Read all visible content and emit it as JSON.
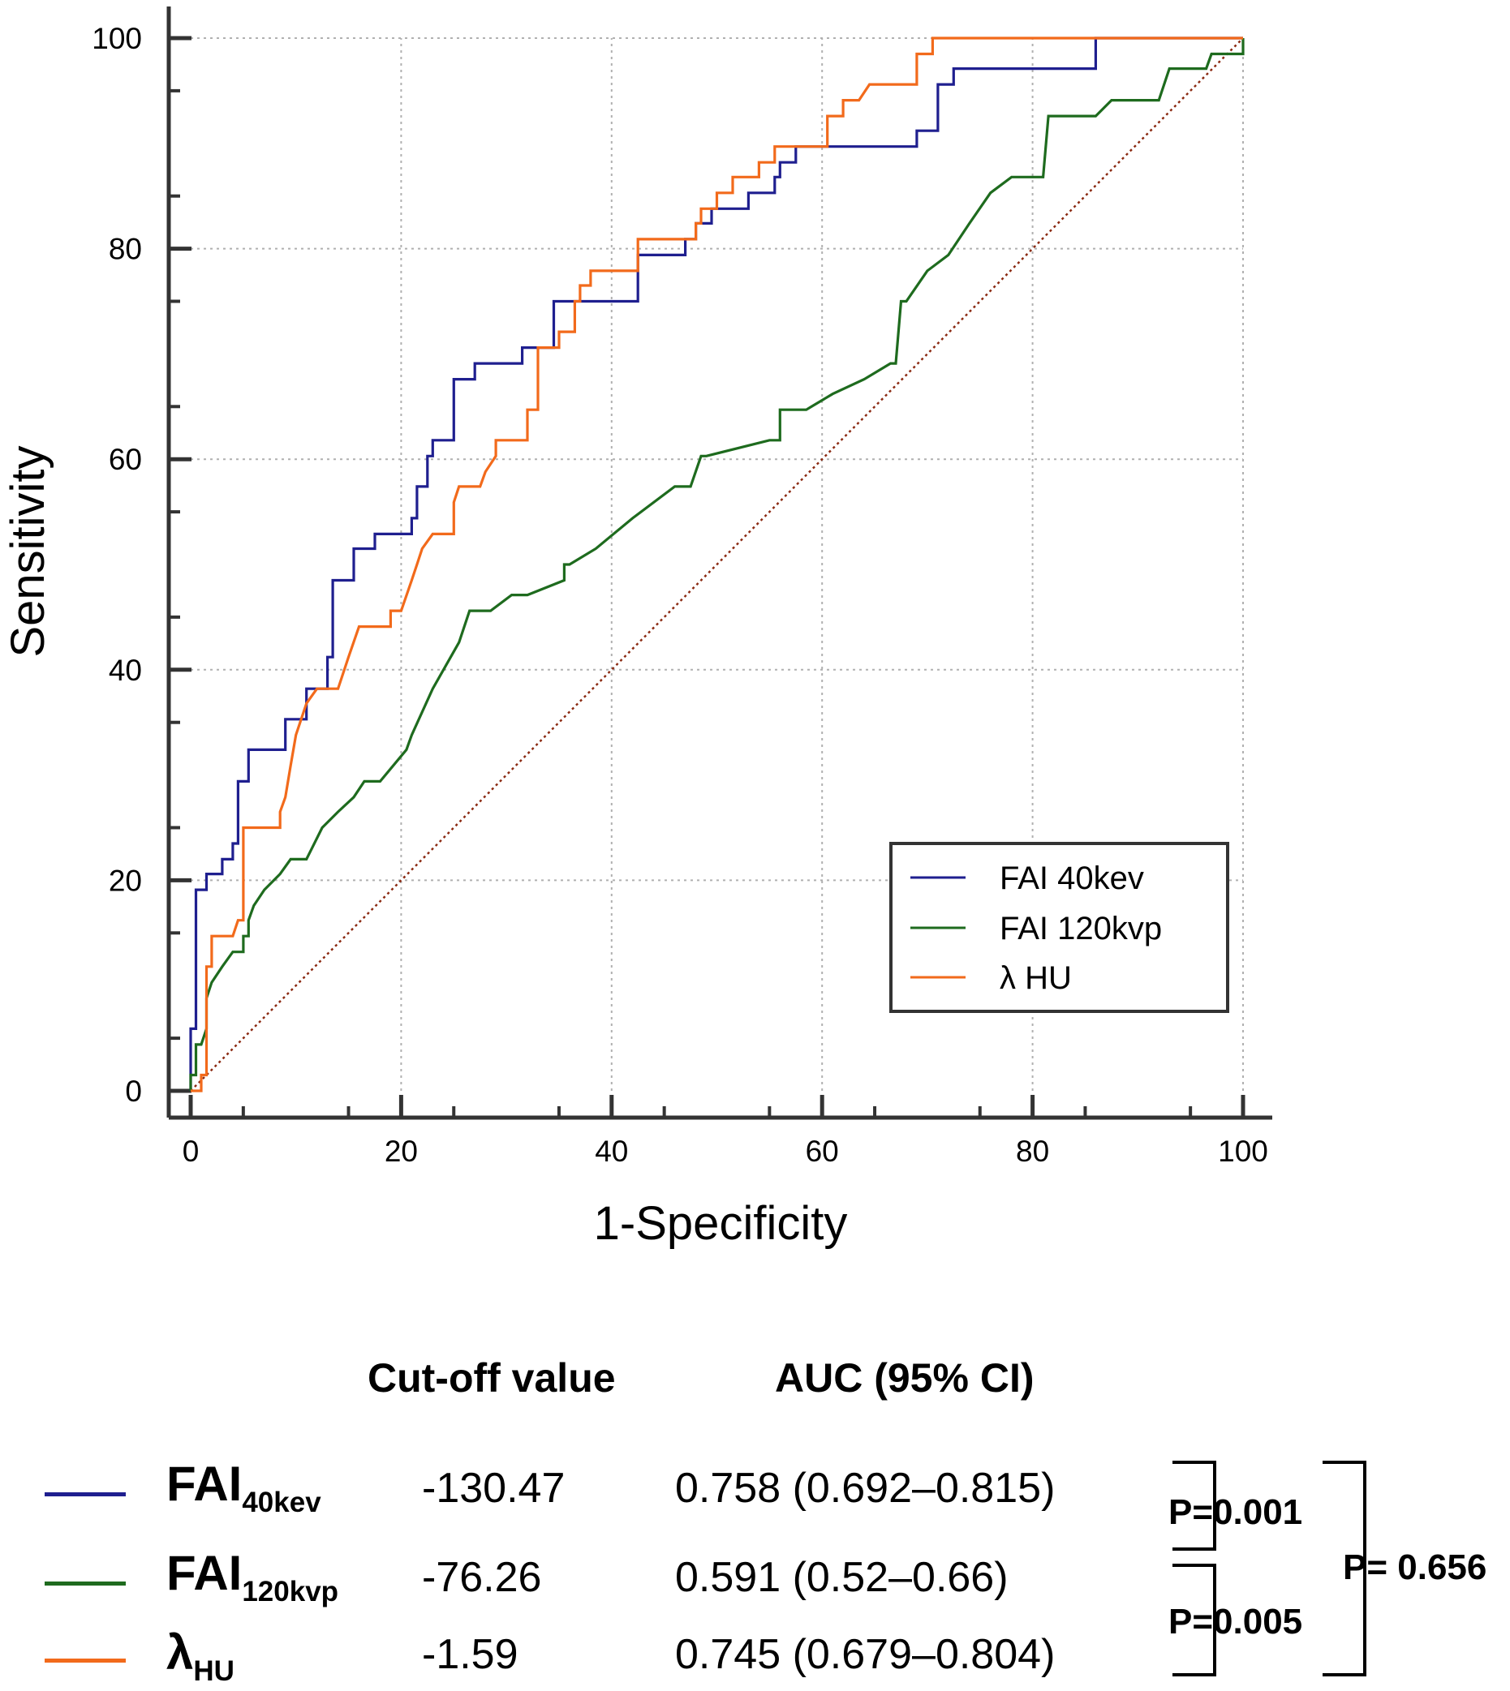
{
  "chart_data": {
    "type": "line",
    "title": "",
    "xlabel": "1-Specificity",
    "ylabel": "Sensitivity",
    "xlim": [
      0,
      100
    ],
    "ylim": [
      0,
      100
    ],
    "xticks": [
      0,
      20,
      40,
      60,
      80,
      100
    ],
    "yticks": [
      0,
      20,
      40,
      60,
      80,
      100
    ],
    "grid": true,
    "legend_position": "bottom-right",
    "reference_line": {
      "name": "diagonal",
      "x": [
        0,
        100
      ],
      "y": [
        0,
        100
      ],
      "color": "#8b2a12"
    },
    "series": [
      {
        "name": "FAI 40kev",
        "color": "#1f1f8f",
        "points": [
          [
            0,
            0
          ],
          [
            0,
            5.9
          ],
          [
            0.5,
            5.9
          ],
          [
            0.5,
            19.1
          ],
          [
            1.5,
            19.1
          ],
          [
            1.5,
            20.6
          ],
          [
            3,
            20.6
          ],
          [
            3,
            22
          ],
          [
            4,
            22
          ],
          [
            4,
            23.5
          ],
          [
            4.5,
            23.5
          ],
          [
            4.5,
            29.4
          ],
          [
            5.5,
            29.4
          ],
          [
            5.5,
            32.4
          ],
          [
            9,
            32.4
          ],
          [
            9,
            35.3
          ],
          [
            11,
            35.3
          ],
          [
            11,
            38.2
          ],
          [
            13,
            38.2
          ],
          [
            13,
            41.2
          ],
          [
            13.5,
            41.2
          ],
          [
            13.5,
            48.5
          ],
          [
            15.5,
            48.5
          ],
          [
            15.5,
            51.5
          ],
          [
            17.5,
            51.5
          ],
          [
            17.5,
            52.9
          ],
          [
            21,
            52.9
          ],
          [
            21,
            54.4
          ],
          [
            21.5,
            54.4
          ],
          [
            21.5,
            57.4
          ],
          [
            22.5,
            57.4
          ],
          [
            22.5,
            60.3
          ],
          [
            23,
            60.3
          ],
          [
            23,
            61.8
          ],
          [
            25,
            61.8
          ],
          [
            25,
            67.6
          ],
          [
            27,
            67.6
          ],
          [
            27,
            69.1
          ],
          [
            31.5,
            69.1
          ],
          [
            31.5,
            70.6
          ],
          [
            34.5,
            70.6
          ],
          [
            34.5,
            75
          ],
          [
            42.5,
            75
          ],
          [
            42.5,
            79.4
          ],
          [
            47,
            79.4
          ],
          [
            47,
            80.9
          ],
          [
            48,
            80.9
          ],
          [
            48,
            82.4
          ],
          [
            49.5,
            82.4
          ],
          [
            49.5,
            83.8
          ],
          [
            53,
            83.8
          ],
          [
            53,
            85.3
          ],
          [
            55.5,
            85.3
          ],
          [
            55.5,
            86.8
          ],
          [
            56,
            86.8
          ],
          [
            56,
            88.2
          ],
          [
            57.5,
            88.2
          ],
          [
            57.5,
            89.7
          ],
          [
            69,
            89.7
          ],
          [
            69,
            91.2
          ],
          [
            71,
            91.2
          ],
          [
            71,
            95.6
          ],
          [
            72.5,
            95.6
          ],
          [
            72.5,
            97.1
          ],
          [
            86,
            97.1
          ],
          [
            86,
            100
          ],
          [
            100,
            100
          ]
        ]
      },
      {
        "name": "FAI 120kvp",
        "color": "#1e6b1e",
        "points": [
          [
            0,
            0
          ],
          [
            0,
            1.5
          ],
          [
            0.5,
            1.5
          ],
          [
            0.5,
            4.4
          ],
          [
            1,
            4.4
          ],
          [
            1.5,
            5.9
          ],
          [
            1.5,
            8.8
          ],
          [
            2,
            10.3
          ],
          [
            3,
            11.8
          ],
          [
            4,
            13.2
          ],
          [
            5,
            13.2
          ],
          [
            5,
            14.7
          ],
          [
            5.5,
            14.7
          ],
          [
            5.5,
            16.2
          ],
          [
            6,
            17.6
          ],
          [
            7,
            19.1
          ],
          [
            8.5,
            20.6
          ],
          [
            9.5,
            22
          ],
          [
            10.5,
            22
          ],
          [
            11,
            22
          ],
          [
            12.5,
            25
          ],
          [
            14,
            26.5
          ],
          [
            15.5,
            27.9
          ],
          [
            16.5,
            29.4
          ],
          [
            18,
            29.4
          ],
          [
            20.5,
            32.4
          ],
          [
            21,
            33.8
          ],
          [
            23,
            38.2
          ],
          [
            25.5,
            42.6
          ],
          [
            26.5,
            45.6
          ],
          [
            28.5,
            45.6
          ],
          [
            30.5,
            47.1
          ],
          [
            31,
            47.1
          ],
          [
            32,
            47.1
          ],
          [
            35.5,
            48.5
          ],
          [
            35.5,
            50
          ],
          [
            36,
            50
          ],
          [
            38.5,
            51.5
          ],
          [
            42,
            54.4
          ],
          [
            46,
            57.4
          ],
          [
            47.5,
            57.4
          ],
          [
            48.5,
            60.3
          ],
          [
            49,
            60.3
          ],
          [
            55,
            61.8
          ],
          [
            56,
            61.8
          ],
          [
            56,
            64.7
          ],
          [
            57,
            64.7
          ],
          [
            58.5,
            64.7
          ],
          [
            59,
            65
          ],
          [
            61,
            66.2
          ],
          [
            64,
            67.6
          ],
          [
            66.5,
            69.1
          ],
          [
            67,
            69.1
          ],
          [
            67.5,
            75
          ],
          [
            68,
            75
          ],
          [
            70,
            77.9
          ],
          [
            72,
            79.4
          ],
          [
            74,
            82.4
          ],
          [
            76,
            85.3
          ],
          [
            78,
            86.8
          ],
          [
            81,
            86.8
          ],
          [
            81.5,
            92.6
          ],
          [
            86,
            92.6
          ],
          [
            87.5,
            94.1
          ],
          [
            90,
            94.1
          ],
          [
            92,
            94.1
          ],
          [
            92.5,
            95.6
          ],
          [
            93,
            97.1
          ],
          [
            96.5,
            97.1
          ],
          [
            97,
            98.5
          ],
          [
            99,
            98.5
          ],
          [
            100,
            98.5
          ],
          [
            100,
            100
          ]
        ]
      },
      {
        "name": "λ HU",
        "color": "#f26a1b",
        "points": [
          [
            0,
            0
          ],
          [
            1,
            0
          ],
          [
            1,
            1.5
          ],
          [
            1.5,
            1.5
          ],
          [
            1.5,
            11.8
          ],
          [
            2,
            11.8
          ],
          [
            2,
            14.7
          ],
          [
            4,
            14.7
          ],
          [
            4.5,
            16.2
          ],
          [
            5,
            16.2
          ],
          [
            5,
            25
          ],
          [
            8.5,
            25
          ],
          [
            8.5,
            26.5
          ],
          [
            9,
            27.9
          ],
          [
            9.5,
            30.9
          ],
          [
            10,
            33.8
          ],
          [
            10.5,
            35.3
          ],
          [
            11,
            36.8
          ],
          [
            12,
            38.2
          ],
          [
            13,
            38.2
          ],
          [
            14,
            38.2
          ],
          [
            15,
            41.2
          ],
          [
            16,
            44.1
          ],
          [
            19,
            44.1
          ],
          [
            19,
            45.6
          ],
          [
            20,
            45.6
          ],
          [
            21,
            48.5
          ],
          [
            21.5,
            50
          ],
          [
            22,
            51.5
          ],
          [
            23,
            52.9
          ],
          [
            24,
            52.9
          ],
          [
            25,
            52.9
          ],
          [
            25,
            55.9
          ],
          [
            25.5,
            57.4
          ],
          [
            27.5,
            57.4
          ],
          [
            28,
            58.8
          ],
          [
            29,
            60.3
          ],
          [
            29,
            61.8
          ],
          [
            32,
            61.8
          ],
          [
            32,
            64.7
          ],
          [
            33,
            64.7
          ],
          [
            33,
            70.6
          ],
          [
            35,
            70.6
          ],
          [
            35,
            72.1
          ],
          [
            36.5,
            72.1
          ],
          [
            36.5,
            75
          ],
          [
            37,
            75
          ],
          [
            37,
            76.5
          ],
          [
            38,
            76.5
          ],
          [
            38,
            77.9
          ],
          [
            42.5,
            77.9
          ],
          [
            42.5,
            80.9
          ],
          [
            48,
            80.9
          ],
          [
            48,
            82.4
          ],
          [
            48.5,
            82.4
          ],
          [
            48.5,
            83.8
          ],
          [
            50,
            83.8
          ],
          [
            50,
            85.3
          ],
          [
            51.5,
            85.3
          ],
          [
            51.5,
            86.8
          ],
          [
            54,
            86.8
          ],
          [
            54,
            88.2
          ],
          [
            55.5,
            88.2
          ],
          [
            55.5,
            89.7
          ],
          [
            60.5,
            89.7
          ],
          [
            60.5,
            92.6
          ],
          [
            62,
            92.6
          ],
          [
            62,
            94.1
          ],
          [
            63.5,
            94.1
          ],
          [
            64.5,
            95.6
          ],
          [
            69,
            95.6
          ],
          [
            69,
            98.5
          ],
          [
            70.5,
            98.5
          ],
          [
            70.5,
            100
          ],
          [
            100,
            100
          ]
        ]
      }
    ]
  },
  "summary": {
    "header_cutoff": "Cut-off value",
    "header_auc": "AUC (95% CI)",
    "rows": [
      {
        "name": "FAI",
        "sub": "40kev",
        "cutoff": "-130.47",
        "auc": "0.758 (0.692–0.815)",
        "color": "#1f1f8f"
      },
      {
        "name": "FAI",
        "sub": "120kvp",
        "cutoff": "-76.26",
        "auc": "0.591 (0.52–0.66)",
        "color": "#1e6b1e"
      },
      {
        "name": "λ",
        "sub": "HU",
        "cutoff": "-1.59",
        "auc": "0.745 (0.679–0.804)",
        "color": "#f26a1b"
      }
    ],
    "p_values": {
      "p12": "P=0.001",
      "p23": "P=0.005",
      "p13": "P= 0.656"
    }
  }
}
